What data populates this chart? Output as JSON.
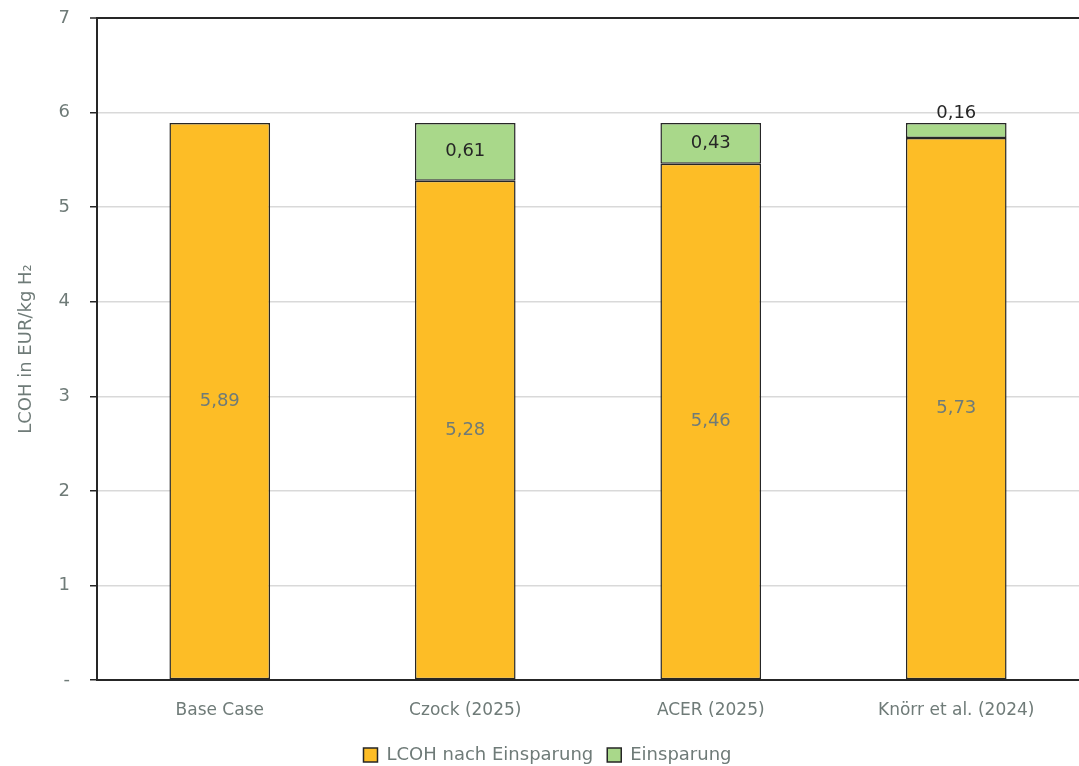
{
  "chart_data": {
    "type": "bar",
    "stacked": true,
    "ylabel": "LCOH in EUR/kg H₂",
    "categories": [
      "Base Case",
      "Czock (2025)",
      "ACER (2025)",
      "Knörr et al. (2024)"
    ],
    "series": [
      {
        "name": "LCOH nach Einsparung",
        "color": "#fdbd26",
        "values": [
          5.89,
          5.28,
          5.46,
          5.73
        ],
        "value_labels": [
          "5,89",
          "5,28",
          "5,46",
          "5,73"
        ]
      },
      {
        "name": "Einsparung",
        "color": "#a9d88a",
        "values": [
          null,
          0.61,
          0.43,
          0.16
        ],
        "value_labels": [
          null,
          "0,61",
          "0,43",
          "0,16"
        ]
      }
    ],
    "ylim": [
      0,
      7
    ],
    "yticks": [
      {
        "value": 0,
        "label": "-"
      },
      1,
      2,
      3,
      4,
      5,
      6,
      7
    ],
    "grid": "y",
    "legend": "bottom"
  }
}
